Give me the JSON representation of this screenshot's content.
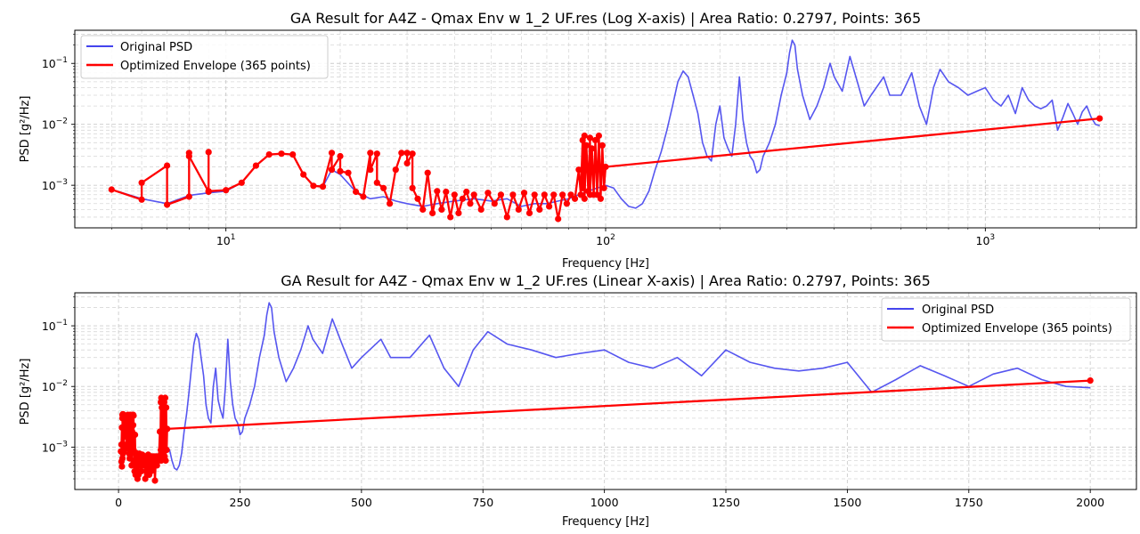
{
  "chart_data": [
    {
      "type": "line",
      "title": "GA Result for A4Z - Qmax Env w 1_2 UF.res (Log X-axis) | Area Ratio: 0.2797, Points: 365",
      "xlabel": "Frequency [Hz]",
      "ylabel": "PSD [g²/Hz]",
      "xscale": "log",
      "yscale": "log",
      "xlim": [
        4,
        2500
      ],
      "ylim": [
        0.0002,
        0.35
      ],
      "x_ticks": [
        {
          "v": 10,
          "base": "10",
          "exp": "1"
        },
        {
          "v": 100,
          "base": "10",
          "exp": "2"
        },
        {
          "v": 1000,
          "base": "10",
          "exp": "3"
        }
      ],
      "y_ticks": [
        {
          "v": 0.001,
          "base": "10",
          "exp": "−3"
        },
        {
          "v": 0.01,
          "base": "10",
          "exp": "−2"
        },
        {
          "v": 0.1,
          "base": "10",
          "exp": "−1"
        }
      ],
      "grid": true,
      "legend_position": "upper-left",
      "series_refs": [
        "original",
        "envelope"
      ]
    },
    {
      "type": "line",
      "title": "GA Result for A4Z - Qmax Env w 1_2 UF.res (Linear X-axis) | Area Ratio: 0.2797, Points: 365",
      "xlabel": "Frequency [Hz]",
      "ylabel": "PSD [g²/Hz]",
      "xscale": "linear",
      "yscale": "log",
      "xlim": [
        -90,
        2095
      ],
      "ylim": [
        0.0002,
        0.35
      ],
      "x_ticks": [
        {
          "v": 0,
          "label": "0"
        },
        {
          "v": 250,
          "label": "250"
        },
        {
          "v": 500,
          "label": "500"
        },
        {
          "v": 750,
          "label": "750"
        },
        {
          "v": 1000,
          "label": "1000"
        },
        {
          "v": 1250,
          "label": "1250"
        },
        {
          "v": 1500,
          "label": "1500"
        },
        {
          "v": 1750,
          "label": "1750"
        },
        {
          "v": 2000,
          "label": "2000"
        }
      ],
      "y_ticks": [
        {
          "v": 0.001,
          "base": "10",
          "exp": "−3"
        },
        {
          "v": 0.01,
          "base": "10",
          "exp": "−2"
        },
        {
          "v": 0.1,
          "base": "10",
          "exp": "−1"
        }
      ],
      "grid": true,
      "legend_position": "upper-right",
      "series_refs": [
        "original",
        "envelope"
      ]
    }
  ],
  "series": {
    "original": {
      "name": "Original PSD",
      "color": "#4444ee",
      "points": [
        [
          5,
          0.00085
        ],
        [
          6,
          0.0006
        ],
        [
          7,
          0.0005
        ],
        [
          8,
          0.00068
        ],
        [
          9,
          0.00075
        ],
        [
          10,
          0.0008
        ],
        [
          11,
          0.0011
        ],
        [
          12,
          0.0021
        ],
        [
          13,
          0.0032
        ],
        [
          14,
          0.0033
        ],
        [
          15,
          0.0032
        ],
        [
          16,
          0.0015
        ],
        [
          17,
          0.001
        ],
        [
          18,
          0.00095
        ],
        [
          19,
          0.0018
        ],
        [
          20,
          0.0015
        ],
        [
          22,
          0.00078
        ],
        [
          24,
          0.0006
        ],
        [
          26,
          0.00065
        ],
        [
          28,
          0.00055
        ],
        [
          30,
          0.0005
        ],
        [
          33,
          0.00045
        ],
        [
          36,
          0.0005
        ],
        [
          40,
          0.00055
        ],
        [
          45,
          0.0006
        ],
        [
          50,
          0.00055
        ],
        [
          55,
          0.0006
        ],
        [
          60,
          0.00045
        ],
        [
          65,
          0.0005
        ],
        [
          70,
          0.0005
        ],
        [
          75,
          0.00055
        ],
        [
          80,
          0.0006
        ],
        [
          85,
          0.0007
        ],
        [
          90,
          0.0008
        ],
        [
          95,
          0.0009
        ],
        [
          100,
          0.001
        ],
        [
          105,
          0.0009
        ],
        [
          110,
          0.0006
        ],
        [
          115,
          0.00045
        ],
        [
          120,
          0.00042
        ],
        [
          125,
          0.0005
        ],
        [
          130,
          0.0008
        ],
        [
          135,
          0.0018
        ],
        [
          140,
          0.0035
        ],
        [
          145,
          0.008
        ],
        [
          150,
          0.02
        ],
        [
          155,
          0.05
        ],
        [
          160,
          0.075
        ],
        [
          165,
          0.06
        ],
        [
          170,
          0.03
        ],
        [
          175,
          0.015
        ],
        [
          180,
          0.005
        ],
        [
          185,
          0.003
        ],
        [
          190,
          0.0025
        ],
        [
          195,
          0.01
        ],
        [
          200,
          0.02
        ],
        [
          205,
          0.006
        ],
        [
          210,
          0.004
        ],
        [
          215,
          0.003
        ],
        [
          220,
          0.01
        ],
        [
          225,
          0.06
        ],
        [
          230,
          0.012
        ],
        [
          235,
          0.005
        ],
        [
          240,
          0.003
        ],
        [
          245,
          0.0025
        ],
        [
          250,
          0.0016
        ],
        [
          255,
          0.0018
        ],
        [
          260,
          0.003
        ],
        [
          270,
          0.005
        ],
        [
          280,
          0.01
        ],
        [
          290,
          0.03
        ],
        [
          300,
          0.07
        ],
        [
          305,
          0.15
        ],
        [
          310,
          0.24
        ],
        [
          315,
          0.2
        ],
        [
          320,
          0.08
        ],
        [
          330,
          0.03
        ],
        [
          345,
          0.012
        ],
        [
          360,
          0.02
        ],
        [
          375,
          0.04
        ],
        [
          390,
          0.1
        ],
        [
          400,
          0.06
        ],
        [
          420,
          0.035
        ],
        [
          440,
          0.13
        ],
        [
          460,
          0.05
        ],
        [
          480,
          0.02
        ],
        [
          500,
          0.03
        ],
        [
          540,
          0.06
        ],
        [
          560,
          0.03
        ],
        [
          600,
          0.03
        ],
        [
          640,
          0.07
        ],
        [
          670,
          0.02
        ],
        [
          700,
          0.01
        ],
        [
          730,
          0.04
        ],
        [
          760,
          0.08
        ],
        [
          800,
          0.05
        ],
        [
          850,
          0.04
        ],
        [
          900,
          0.03
        ],
        [
          950,
          0.035
        ],
        [
          1000,
          0.04
        ],
        [
          1050,
          0.025
        ],
        [
          1100,
          0.02
        ],
        [
          1150,
          0.03
        ],
        [
          1200,
          0.015
        ],
        [
          1250,
          0.04
        ],
        [
          1300,
          0.025
        ],
        [
          1350,
          0.02
        ],
        [
          1400,
          0.018
        ],
        [
          1450,
          0.02
        ],
        [
          1500,
          0.025
        ],
        [
          1550,
          0.008
        ],
        [
          1600,
          0.013
        ],
        [
          1650,
          0.022
        ],
        [
          1700,
          0.015
        ],
        [
          1750,
          0.01
        ],
        [
          1800,
          0.016
        ],
        [
          1850,
          0.02
        ],
        [
          1900,
          0.013
        ],
        [
          1950,
          0.01
        ],
        [
          2000,
          0.0095
        ]
      ]
    },
    "envelope": {
      "name": "Optimized Envelope (365 points)",
      "color": "#ff0000",
      "points": [
        [
          5,
          0.00085
        ],
        [
          6,
          0.00058
        ],
        [
          6,
          0.0011
        ],
        [
          7,
          0.0021
        ],
        [
          7,
          0.00048
        ],
        [
          8,
          0.00065
        ],
        [
          8,
          0.0034
        ],
        [
          8,
          0.003
        ],
        [
          9,
          0.00078
        ],
        [
          9,
          0.0035
        ],
        [
          9,
          0.0008
        ],
        [
          10,
          0.00083
        ],
        [
          11,
          0.0011
        ],
        [
          12,
          0.0021
        ],
        [
          13,
          0.0032
        ],
        [
          14,
          0.0033
        ],
        [
          15,
          0.0032
        ],
        [
          16,
          0.0015
        ],
        [
          17,
          0.00098
        ],
        [
          18,
          0.00095
        ],
        [
          19,
          0.0034
        ],
        [
          19,
          0.0018
        ],
        [
          20,
          0.003
        ],
        [
          20,
          0.0017
        ],
        [
          21,
          0.0016
        ],
        [
          22,
          0.00078
        ],
        [
          23,
          0.00065
        ],
        [
          24,
          0.0034
        ],
        [
          24,
          0.0018
        ],
        [
          25,
          0.0033
        ],
        [
          25,
          0.0011
        ],
        [
          26,
          0.0009
        ],
        [
          27,
          0.0005
        ],
        [
          28,
          0.0018
        ],
        [
          29,
          0.0034
        ],
        [
          30,
          0.0034
        ],
        [
          30,
          0.0023
        ],
        [
          31,
          0.0033
        ],
        [
          31,
          0.0009
        ],
        [
          32,
          0.0006
        ],
        [
          33,
          0.0004
        ],
        [
          34,
          0.0016
        ],
        [
          35,
          0.00035
        ],
        [
          36,
          0.0008
        ],
        [
          37,
          0.0004
        ],
        [
          38,
          0.00078
        ],
        [
          39,
          0.0003
        ],
        [
          40,
          0.0007
        ],
        [
          41,
          0.00035
        ],
        [
          42,
          0.0006
        ],
        [
          43,
          0.00078
        ],
        [
          44,
          0.0005
        ],
        [
          45,
          0.0007
        ],
        [
          47,
          0.0004
        ],
        [
          49,
          0.00075
        ],
        [
          51,
          0.0005
        ],
        [
          53,
          0.0007
        ],
        [
          55,
          0.0003
        ],
        [
          57,
          0.0007
        ],
        [
          59,
          0.0004
        ],
        [
          61,
          0.00075
        ],
        [
          63,
          0.00035
        ],
        [
          65,
          0.0007
        ],
        [
          67,
          0.0004
        ],
        [
          69,
          0.0007
        ],
        [
          71,
          0.00045
        ],
        [
          73,
          0.0007
        ],
        [
          75,
          0.00028
        ],
        [
          77,
          0.0007
        ],
        [
          79,
          0.0005
        ],
        [
          81,
          0.0007
        ],
        [
          83,
          0.0006
        ],
        [
          85,
          0.0018
        ],
        [
          86,
          0.0007
        ],
        [
          87,
          0.0055
        ],
        [
          87,
          0.0009
        ],
        [
          88,
          0.0065
        ],
        [
          88,
          0.0006
        ],
        [
          89,
          0.0045
        ],
        [
          90,
          0.0008
        ],
        [
          91,
          0.006
        ],
        [
          91,
          0.0007
        ],
        [
          92,
          0.004
        ],
        [
          93,
          0.0007
        ],
        [
          94,
          0.0055
        ],
        [
          95,
          0.0007
        ],
        [
          96,
          0.0065
        ],
        [
          97,
          0.0006
        ],
        [
          98,
          0.0045
        ],
        [
          99,
          0.0009
        ],
        [
          100,
          0.002
        ],
        [
          2000,
          0.0125
        ]
      ]
    }
  }
}
